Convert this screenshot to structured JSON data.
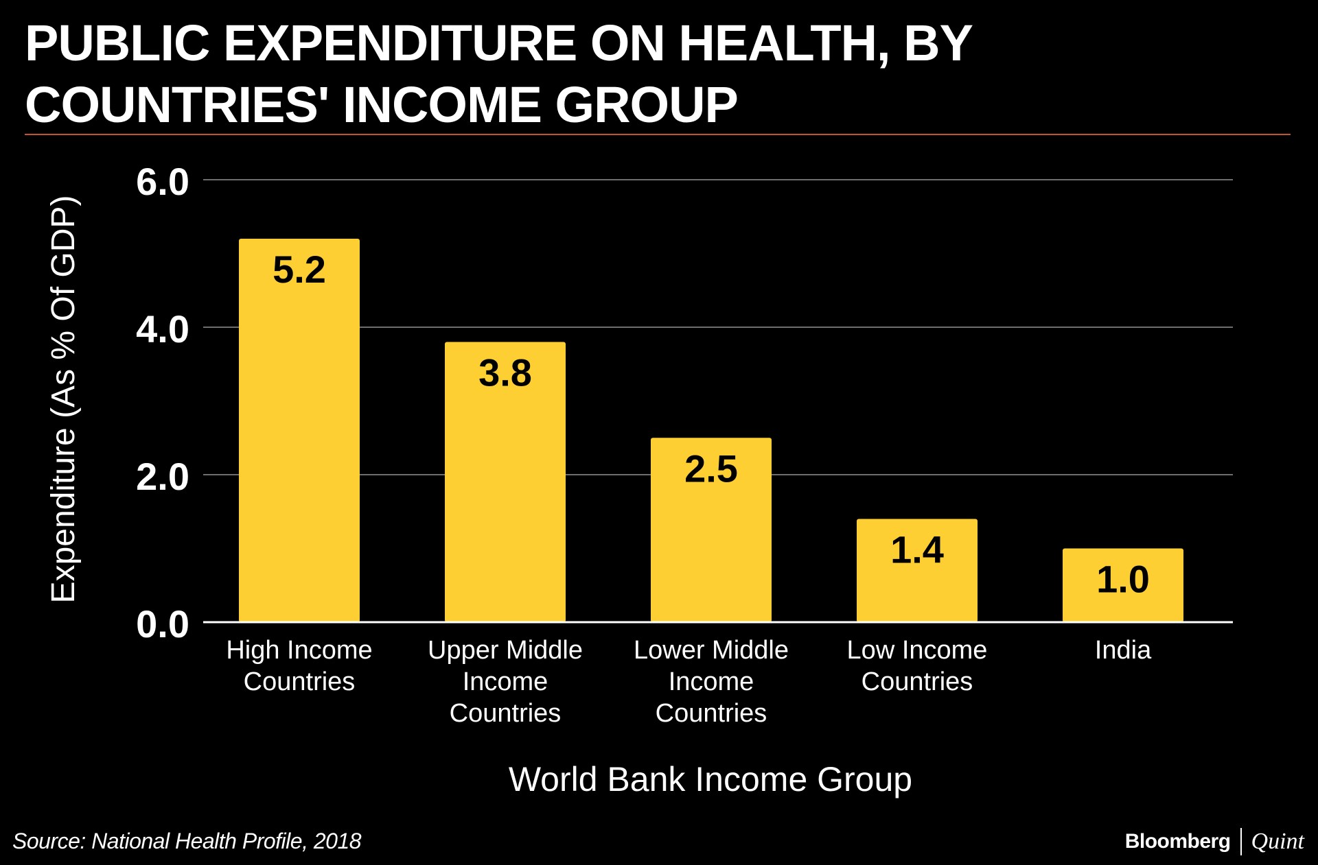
{
  "header": {
    "title": "PUBLIC EXPENDITURE ON HEALTH, BY COUNTRIES' INCOME GROUP"
  },
  "chart_data": {
    "type": "bar",
    "title": "PUBLIC EXPENDITURE ON HEALTH, BY COUNTRIES' INCOME GROUP",
    "xlabel": "World Bank Income Group",
    "ylabel": "Expenditure (As % Of GDP)",
    "categories": [
      [
        "High Income",
        "Countries"
      ],
      [
        "Upper Middle",
        "Income",
        "Countries"
      ],
      [
        "Lower Middle",
        "Income",
        "Countries"
      ],
      [
        "Low Income",
        "Countries"
      ],
      [
        "India"
      ]
    ],
    "values": [
      5.2,
      3.8,
      2.5,
      1.4,
      1.0
    ],
    "value_labels": [
      "5.2",
      "3.8",
      "2.5",
      "1.4",
      "1.0"
    ],
    "ylim": [
      0,
      6
    ],
    "yticks": [
      0,
      2,
      4,
      6
    ],
    "ytick_labels": [
      "0.0",
      "2.0",
      "4.0",
      "6.0"
    ],
    "grid": true,
    "legend": "none"
  },
  "colors": {
    "background": "#000000",
    "bar": "#fdcf33",
    "bar_label": "#000000",
    "gridline": "#6e6e6e",
    "axis": "#ffffff",
    "title_rule": "#c4542b",
    "text": "#ffffff"
  },
  "footer": {
    "source": "Source: National Health Profile, 2018",
    "brand_primary": "Bloomberg",
    "brand_secondary": "Quint"
  }
}
